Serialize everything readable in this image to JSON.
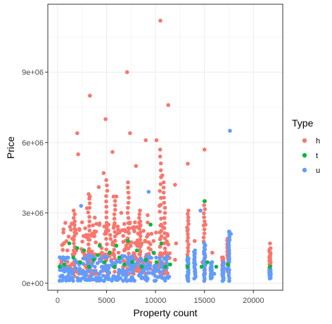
{
  "chart_data": {
    "type": "scatter",
    "title": "",
    "xlabel": "Property count",
    "ylabel": "Price",
    "xlim": [
      -1000,
      23000
    ],
    "ylim": [
      -300000,
      11900000
    ],
    "x_ticks": [
      0,
      5000,
      10000,
      15000,
      20000
    ],
    "x_tick_labels": [
      "0",
      "5000",
      "10000",
      "15000",
      "20000"
    ],
    "y_ticks": [
      0,
      3000000,
      6000000,
      9000000
    ],
    "y_tick_labels": [
      "0e+00",
      "3e+06",
      "6e+06",
      "9e+06"
    ],
    "grid": true,
    "legend": {
      "title": "Type",
      "placement": "right",
      "entries": [
        {
          "label": "h",
          "color": "#F8766D"
        },
        {
          "label": "t",
          "color": "#00BA38"
        },
        {
          "label": "u",
          "color": "#619CFF"
        }
      ]
    },
    "series": [
      {
        "name": "h",
        "color": "#F8766D",
        "points": [
          [
            10500,
            11200000
          ],
          [
            7100,
            9000000
          ],
          [
            3300,
            8000000
          ],
          [
            11300,
            7600000
          ],
          [
            4900,
            7000000
          ],
          [
            2000,
            6400000
          ],
          [
            7400,
            6400000
          ],
          [
            2100,
            5500000
          ],
          [
            9000,
            6100000
          ],
          [
            10100,
            6100000
          ],
          [
            13300,
            5100000
          ],
          [
            15000,
            5700000
          ],
          [
            4700,
            4700000
          ],
          [
            5600,
            5600000
          ],
          [
            8000,
            5000000
          ],
          [
            10700,
            4600000
          ],
          [
            12000,
            4200000
          ],
          [
            4200,
            4100000
          ],
          [
            3300,
            3700000
          ],
          [
            6000,
            3700000
          ],
          [
            600,
            2300000
          ],
          [
            1000,
            1400000
          ],
          [
            1500,
            1900000
          ],
          [
            2500,
            2600000
          ],
          [
            3000,
            3200000
          ],
          [
            3800,
            2800000
          ],
          [
            5200,
            2500000
          ],
          [
            6500,
            3000000
          ],
          [
            7200,
            2200000
          ],
          [
            7900,
            2600000
          ],
          [
            9200,
            2900000
          ],
          [
            10400,
            3300000
          ],
          [
            11200,
            2100000
          ],
          [
            12100,
            1700000
          ],
          [
            13300,
            2300000
          ],
          [
            14000,
            1800000
          ],
          [
            15100,
            2500000
          ],
          [
            15800,
            1300000
          ],
          [
            16800,
            1100000
          ],
          [
            17500,
            2200000
          ],
          [
            21700,
            1700000
          ],
          [
            21700,
            1000000
          ],
          [
            300,
            800000
          ],
          [
            2800,
            1200000
          ],
          [
            4500,
            1500000
          ],
          [
            6800,
            1400000
          ],
          [
            8500,
            1600000
          ],
          [
            9800,
            1800000
          ],
          [
            12000,
            1000000
          ],
          [
            14800,
            900000
          ]
        ],
        "columns": [
          {
            "x": 1700,
            "min": 300000,
            "max": 3100000
          },
          {
            "x": 3200,
            "min": 300000,
            "max": 3800000
          },
          {
            "x": 5000,
            "min": 300000,
            "max": 4400000
          },
          {
            "x": 5800,
            "min": 300000,
            "max": 3700000
          },
          {
            "x": 7200,
            "min": 400000,
            "max": 4300000
          },
          {
            "x": 8400,
            "min": 300000,
            "max": 3100000
          },
          {
            "x": 10500,
            "min": 400000,
            "max": 5700000
          },
          {
            "x": 10900,
            "min": 400000,
            "max": 4300000
          },
          {
            "x": 13300,
            "min": 500000,
            "max": 3100000
          },
          {
            "x": 15000,
            "min": 400000,
            "max": 3500000
          },
          {
            "x": 16900,
            "min": 600000,
            "max": 1100000
          },
          {
            "x": 17400,
            "min": 500000,
            "max": 1900000
          },
          {
            "x": 21700,
            "min": 600000,
            "max": 1500000
          }
        ],
        "cluster": {
          "xmin": 300,
          "xmax": 11500,
          "ymin": 400000,
          "ymax": 2600000
        }
      },
      {
        "name": "t",
        "color": "#00BA38",
        "points": [
          [
            200,
            700000
          ],
          [
            700,
            800000
          ],
          [
            1200,
            1700000
          ],
          [
            1600,
            1100000
          ],
          [
            2300,
            900000
          ],
          [
            2700,
            1400000
          ],
          [
            3200,
            700000
          ],
          [
            3700,
            1000000
          ],
          [
            4300,
            1600000
          ],
          [
            4800,
            900000
          ],
          [
            5300,
            1300000
          ],
          [
            5800,
            700000
          ],
          [
            6300,
            1100000
          ],
          [
            6800,
            800000
          ],
          [
            7200,
            1800000
          ],
          [
            7600,
            900000
          ],
          [
            8100,
            1400000
          ],
          [
            8600,
            700000
          ],
          [
            9000,
            1000000
          ],
          [
            9500,
            2500000
          ],
          [
            10100,
            900000
          ],
          [
            10600,
            1700000
          ],
          [
            11000,
            700000
          ],
          [
            11500,
            800000
          ],
          [
            13300,
            700000
          ],
          [
            14700,
            700000
          ],
          [
            15000,
            3500000
          ],
          [
            15300,
            900000
          ],
          [
            16200,
            700000
          ],
          [
            17400,
            800000
          ],
          [
            21700,
            700000
          ],
          [
            4100,
            1200000
          ],
          [
            2000,
            1500000
          ],
          [
            9800,
            1300000
          ],
          [
            6000,
            1600000
          ]
        ]
      },
      {
        "name": "u",
        "color": "#619CFF",
        "points": [
          [
            17600,
            6500000
          ],
          [
            9300,
            3900000
          ],
          [
            14600,
            3100000
          ],
          [
            2400,
            3300000
          ],
          [
            300,
            300000
          ],
          [
            800,
            600000
          ],
          [
            1500,
            400000
          ],
          [
            2200,
            800000
          ],
          [
            3000,
            500000
          ],
          [
            3600,
            900000
          ],
          [
            4300,
            400000
          ],
          [
            5000,
            700000
          ],
          [
            5700,
            300000
          ],
          [
            6400,
            900000
          ],
          [
            7100,
            500000
          ],
          [
            7800,
            800000
          ],
          [
            8500,
            400000
          ],
          [
            9200,
            1100000
          ],
          [
            9900,
            600000
          ],
          [
            10600,
            300000
          ],
          [
            11300,
            800000
          ],
          [
            13300,
            300000
          ],
          [
            14000,
            500000
          ],
          [
            15100,
            800000
          ],
          [
            16000,
            400000
          ],
          [
            17300,
            600000
          ],
          [
            17700,
            2100000
          ],
          [
            21700,
            400000
          ]
        ],
        "columns": [
          {
            "x": 13300,
            "min": 100000,
            "max": 1100000
          },
          {
            "x": 14000,
            "min": 200000,
            "max": 1400000
          },
          {
            "x": 15000,
            "min": 100000,
            "max": 1700000
          },
          {
            "x": 15700,
            "min": 200000,
            "max": 900000
          },
          {
            "x": 16900,
            "min": 100000,
            "max": 900000
          },
          {
            "x": 17500,
            "min": 100000,
            "max": 2200000
          },
          {
            "x": 21700,
            "min": 200000,
            "max": 600000
          }
        ],
        "cluster": {
          "xmin": 200,
          "xmax": 11600,
          "ymin": 100000,
          "ymax": 1200000
        }
      }
    ]
  }
}
